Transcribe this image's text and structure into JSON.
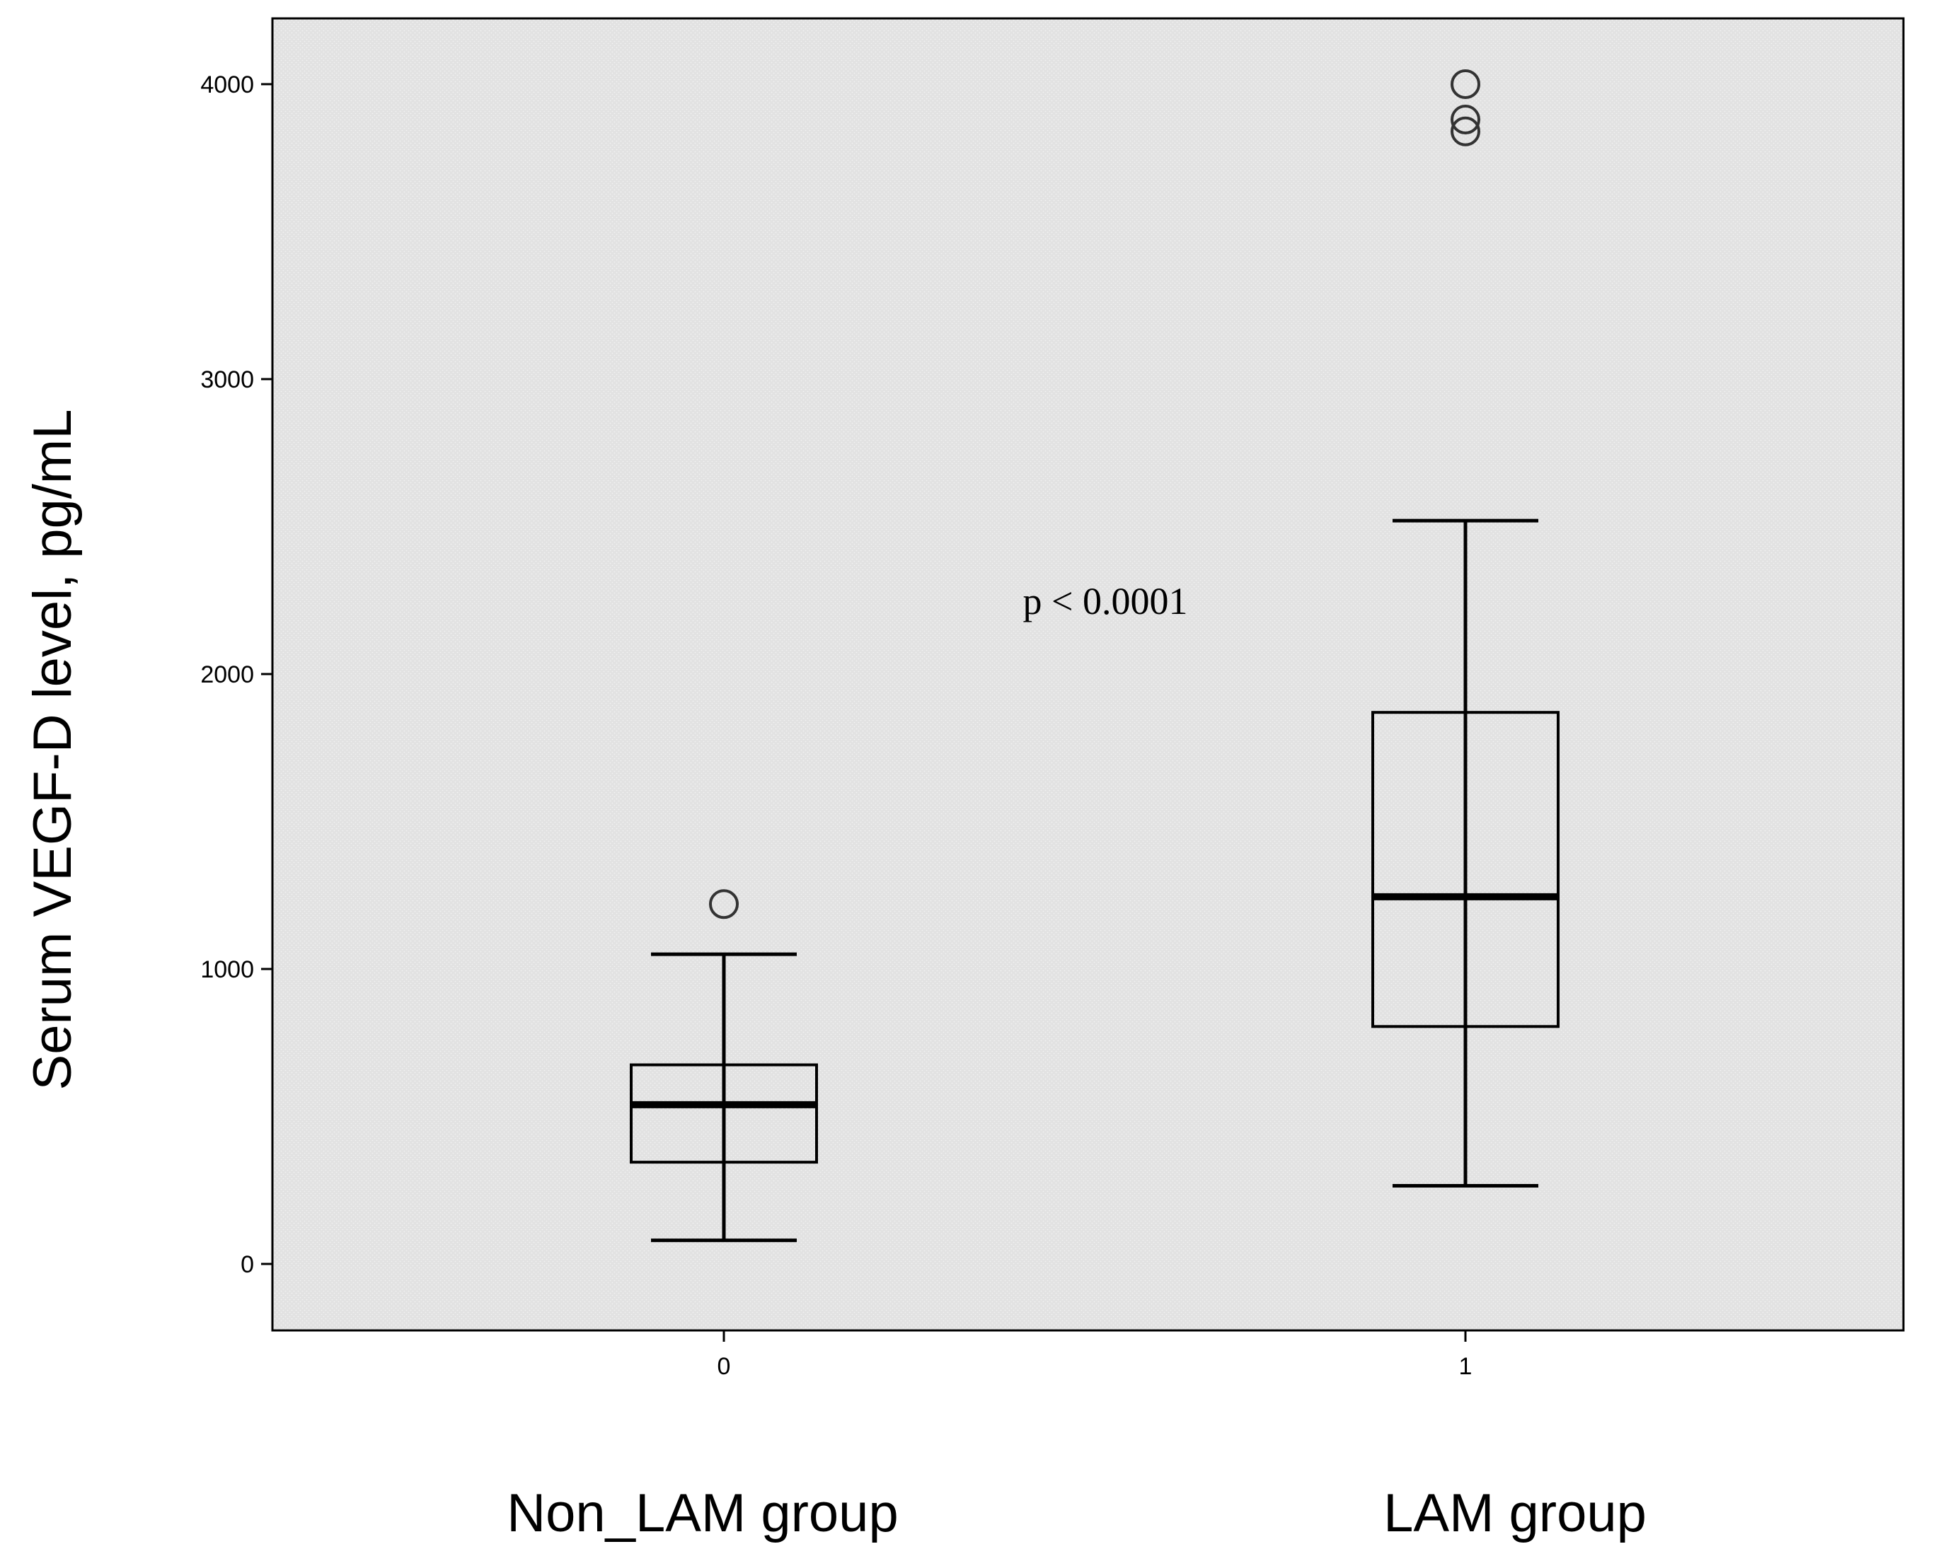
{
  "chart_data": {
    "type": "boxplot",
    "ylabel": "Serum VEGF-D level, pg/mL",
    "ylim": [
      -220,
      4230
    ],
    "y_ticks": [
      0,
      1000,
      2000,
      3000,
      4000
    ],
    "y_tick_labels": [
      "0",
      "1000",
      "2000",
      "3000",
      "4000"
    ],
    "categories": [
      "0",
      "1"
    ],
    "group_labels": [
      "Non_LAM group",
      "LAM group"
    ],
    "boxes": [
      {
        "category": "0",
        "whisker_low": 80,
        "q1": 345,
        "median": 540,
        "q3": 675,
        "whisker_high": 1050,
        "outliers": [
          1220
        ]
      },
      {
        "category": "1",
        "whisker_low": 265,
        "q1": 805,
        "median": 1245,
        "q3": 1870,
        "whisker_high": 2520,
        "outliers": [
          4000,
          3880,
          3840
        ]
      }
    ],
    "annotation": "p < 0.0001",
    "grid": false,
    "colors": {
      "plot_background": "#e6e6e6",
      "box_stroke": "#000000",
      "outlier_stroke": "#333333"
    }
  }
}
